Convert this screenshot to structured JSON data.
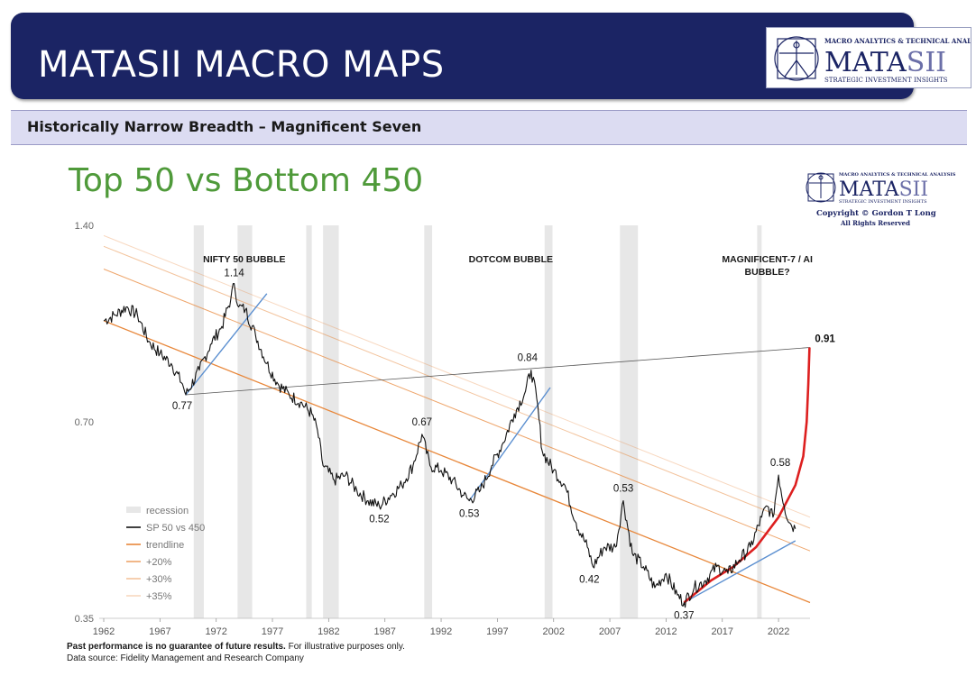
{
  "header": {
    "title": "MATASII MACRO MAPS",
    "logo": {
      "top_line": "MACRO ANALYTICS & TECHNICAL ANALYSIS",
      "brand_dark": "MATA",
      "brand_light": "SII",
      "tagline": "STRATEGIC INVESTMENT INSIGHTS"
    }
  },
  "subheader": {
    "title": "Historically Narrow Breadth – Magnificent Seven"
  },
  "chart_logo": {
    "top_line": "MACRO ANALYTICS & TECHNICAL ANALYSIS",
    "brand_dark": "MATA",
    "brand_light": "SII",
    "tagline": "STRATEGIC INVESTMENT INSIGHTS",
    "copyright": "Copyright © Gordon T Long",
    "rights": "All Rights Reserved"
  },
  "colors": {
    "banner": "#1b2464",
    "subbar": "#dcdcf2",
    "title_green": "#4f9a3a",
    "series": "#111111",
    "trend": "#e8873a",
    "recession": "#e7e7e7",
    "blue_line": "#5b8fd0",
    "red_curve": "#dd1f1f"
  },
  "chart_data": {
    "type": "line",
    "title": "Top 50 vs Bottom 450",
    "ylim": [
      0.35,
      1.4
    ],
    "xlim": [
      1962,
      2024.8
    ],
    "yticks": [
      "1.40",
      "0.70",
      "0.35"
    ],
    "xticks": [
      "1962",
      "1967",
      "1972",
      "1977",
      "1982",
      "1987",
      "1992",
      "1997",
      "2002",
      "2007",
      "2012",
      "2017",
      "2022"
    ],
    "recessions": [
      [
        1970.0,
        1970.9
      ],
      [
        1973.9,
        1975.2
      ],
      [
        1980.0,
        1980.5
      ],
      [
        1981.5,
        1982.9
      ],
      [
        1990.5,
        1991.2
      ],
      [
        2001.2,
        2001.9
      ],
      [
        2007.9,
        2009.5
      ],
      [
        2020.1,
        2020.5
      ]
    ],
    "series": [
      {
        "name": "SP 50 vs 450",
        "points": [
          [
            1962.0,
            1.0
          ],
          [
            1963.0,
            1.02
          ],
          [
            1964.0,
            1.05
          ],
          [
            1965.0,
            1.02
          ],
          [
            1966.0,
            0.93
          ],
          [
            1967.0,
            0.89
          ],
          [
            1968.0,
            0.86
          ],
          [
            1969.0,
            0.8
          ],
          [
            1969.3,
            0.77
          ],
          [
            1970.5,
            0.84
          ],
          [
            1971.5,
            0.92
          ],
          [
            1972.5,
            0.98
          ],
          [
            1973.3,
            1.08
          ],
          [
            1973.6,
            1.14
          ],
          [
            1974.0,
            1.05
          ],
          [
            1974.6,
            1.04
          ],
          [
            1975.5,
            0.95
          ],
          [
            1976.5,
            0.86
          ],
          [
            1977.5,
            0.8
          ],
          [
            1978.5,
            0.77
          ],
          [
            1979.5,
            0.75
          ],
          [
            1980.5,
            0.72
          ],
          [
            1981.0,
            0.68
          ],
          [
            1981.5,
            0.6
          ],
          [
            1982.5,
            0.57
          ],
          [
            1983.5,
            0.58
          ],
          [
            1984.5,
            0.55
          ],
          [
            1985.5,
            0.53
          ],
          [
            1986.5,
            0.52
          ],
          [
            1987.5,
            0.54
          ],
          [
            1988.5,
            0.56
          ],
          [
            1989.5,
            0.6
          ],
          [
            1990.3,
            0.67
          ],
          [
            1991.0,
            0.6
          ],
          [
            1992.0,
            0.59
          ],
          [
            1993.0,
            0.57
          ],
          [
            1994.0,
            0.54
          ],
          [
            1994.5,
            0.53
          ],
          [
            1995.5,
            0.55
          ],
          [
            1996.5,
            0.6
          ],
          [
            1997.5,
            0.65
          ],
          [
            1998.5,
            0.72
          ],
          [
            1999.5,
            0.78
          ],
          [
            2000.0,
            0.84
          ],
          [
            2000.5,
            0.76
          ],
          [
            2001.0,
            0.63
          ],
          [
            2002.0,
            0.59
          ],
          [
            2003.0,
            0.56
          ],
          [
            2004.0,
            0.49
          ],
          [
            2005.0,
            0.45
          ],
          [
            2005.5,
            0.42
          ],
          [
            2006.5,
            0.45
          ],
          [
            2007.5,
            0.45
          ],
          [
            2008.2,
            0.53
          ],
          [
            2009.0,
            0.44
          ],
          [
            2010.0,
            0.42
          ],
          [
            2011.0,
            0.39
          ],
          [
            2012.0,
            0.41
          ],
          [
            2013.0,
            0.38
          ],
          [
            2013.6,
            0.37
          ],
          [
            2014.5,
            0.39
          ],
          [
            2015.5,
            0.4
          ],
          [
            2016.5,
            0.42
          ],
          [
            2017.5,
            0.41
          ],
          [
            2018.5,
            0.43
          ],
          [
            2019.5,
            0.45
          ],
          [
            2020.5,
            0.5
          ],
          [
            2021.0,
            0.52
          ],
          [
            2021.5,
            0.5
          ],
          [
            2022.0,
            0.58
          ],
          [
            2022.5,
            0.52
          ],
          [
            2023.0,
            0.49
          ],
          [
            2023.5,
            0.48
          ]
        ]
      },
      {
        "name": "trendline",
        "points": [
          [
            1962.0,
            1.0
          ],
          [
            2024.8,
            0.37
          ]
        ]
      },
      {
        "name": "+20%",
        "points": [
          [
            1962.0,
            1.2
          ],
          [
            2024.8,
            0.444
          ]
        ]
      },
      {
        "name": "+30%",
        "points": [
          [
            1962.0,
            1.3
          ],
          [
            2024.8,
            0.481
          ]
        ]
      },
      {
        "name": "+35%",
        "points": [
          [
            1962.0,
            1.35
          ],
          [
            2024.8,
            0.5
          ]
        ]
      }
    ],
    "legend": {
      "placement": "bottom-left",
      "items": [
        {
          "label": "recession",
          "style": "band"
        },
        {
          "label": "SP 50 vs 450",
          "style": "line"
        },
        {
          "label": "trendline",
          "style": "line"
        },
        {
          "label": "+20%",
          "style": "line"
        },
        {
          "label": "+30%",
          "style": "line"
        },
        {
          "label": "+35%",
          "style": "line"
        }
      ]
    },
    "overlays": {
      "red_curve": [
        [
          2013.6,
          0.37
        ],
        [
          2016.0,
          0.4
        ],
        [
          2018.0,
          0.42
        ],
        [
          2020.0,
          0.45
        ],
        [
          2022.0,
          0.5
        ],
        [
          2023.5,
          0.56
        ],
        [
          2024.2,
          0.62
        ],
        [
          2024.5,
          0.7
        ],
        [
          2024.65,
          0.8
        ],
        [
          2024.75,
          0.91
        ]
      ],
      "gray_line": [
        [
          1969.3,
          0.77
        ],
        [
          2024.8,
          0.91
        ]
      ],
      "blue_lines": [
        [
          [
            1969.3,
            0.77
          ],
          [
            1976.5,
            1.1
          ]
        ],
        [
          [
            1994.5,
            0.53
          ],
          [
            2001.7,
            0.79
          ]
        ],
        [
          [
            2013.6,
            0.37
          ],
          [
            2023.5,
            0.46
          ]
        ]
      ]
    },
    "data_labels": [
      {
        "text": "1.14",
        "x": 1973.6,
        "y": 1.14
      },
      {
        "text": "0.77",
        "x": 1969.3,
        "y": 0.77
      },
      {
        "text": "0.52",
        "x": 1986.5,
        "y": 0.52
      },
      {
        "text": "0.67",
        "x": 1990.3,
        "y": 0.67
      },
      {
        "text": "0.53",
        "x": 1994.5,
        "y": 0.53
      },
      {
        "text": "0.84",
        "x": 2000.0,
        "y": 0.84
      },
      {
        "text": "0.53",
        "x": 2008.2,
        "y": 0.53
      },
      {
        "text": "0.42",
        "x": 2005.5,
        "y": 0.42
      },
      {
        "text": "0.37",
        "x": 2013.6,
        "y": 0.37
      },
      {
        "text": "0.58",
        "x": 2022.0,
        "y": 0.58
      },
      {
        "text": "0.91",
        "x": 2024.75,
        "y": 0.91
      }
    ],
    "annotations": [
      {
        "text": "NIFTY 50 BUBBLE",
        "x": 1974.5
      },
      {
        "text": "DOTCOM BUBBLE",
        "x": 1998.2
      },
      {
        "text": "MAGNIFICENT-7 / AI",
        "x": 2021.0
      },
      {
        "text": "BUBBLE?",
        "x": 2021.0
      }
    ]
  },
  "footer": {
    "disclaimer_bold": "Past performance is no guarantee of future results.",
    "disclaimer_rest": " For illustrative purposes only.",
    "source": "Data source: Fidelity Management and Research Company"
  }
}
